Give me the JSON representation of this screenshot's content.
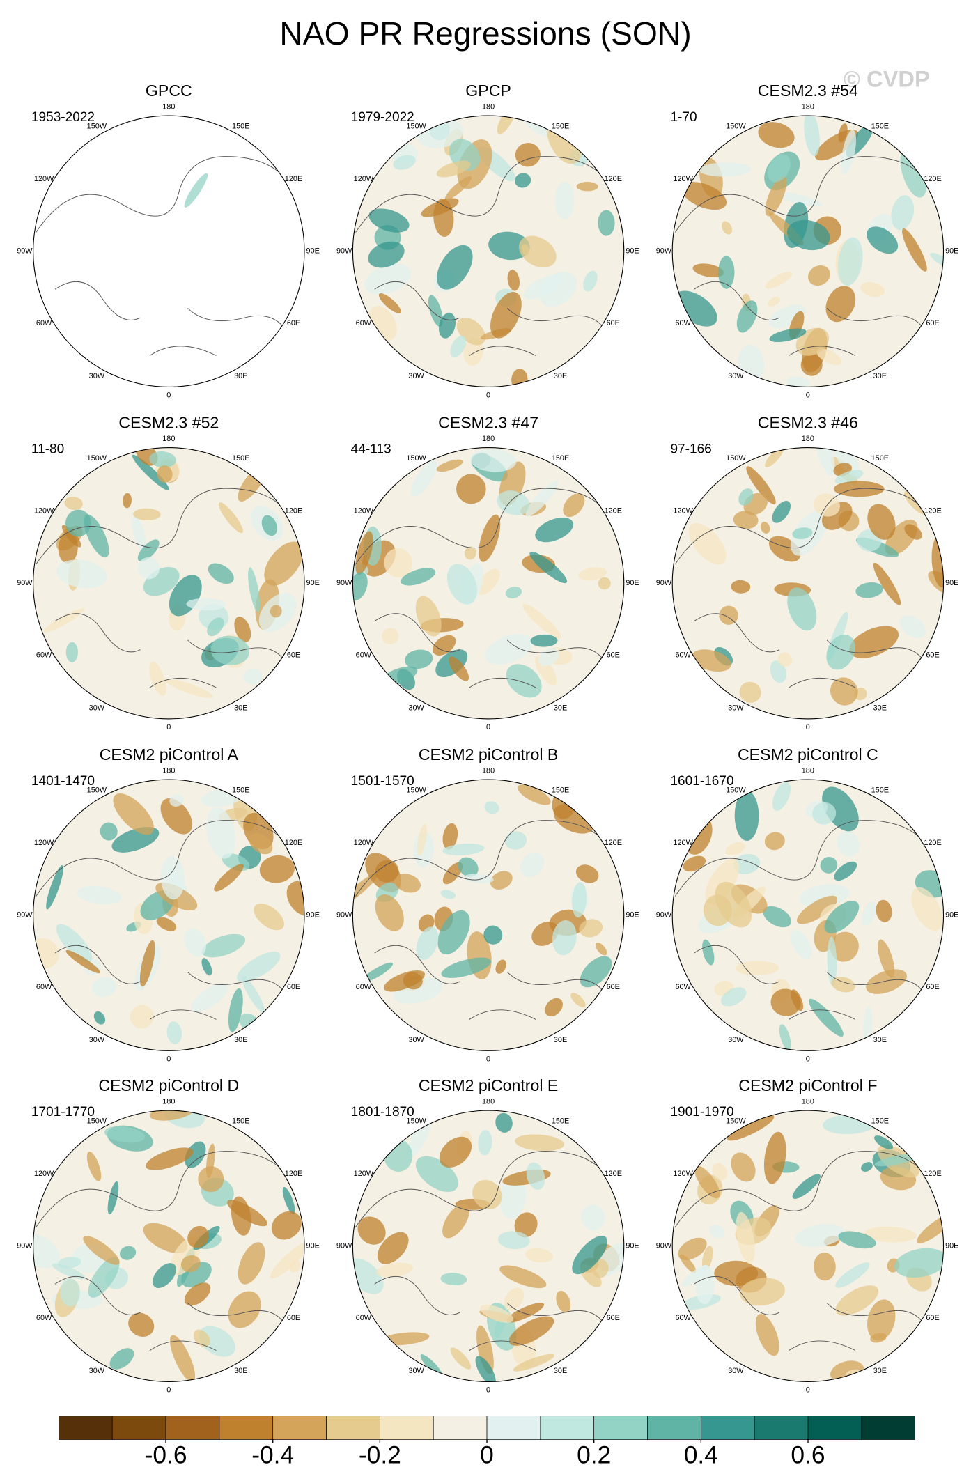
{
  "title": "NAO PR Regressions (SON)",
  "watermark": "© CVDP",
  "panels": [
    {
      "title": "GPCC",
      "period": "1953-2022"
    },
    {
      "title": "GPCP",
      "period": "1979-2022"
    },
    {
      "title": "CESM2.3 #54",
      "period": "1-70"
    },
    {
      "title": "CESM2.3 #52",
      "period": "11-80"
    },
    {
      "title": "CESM2.3 #47",
      "period": "44-113"
    },
    {
      "title": "CESM2.3 #46",
      "period": "97-166"
    },
    {
      "title": "CESM2 piControl A",
      "period": "1401-1470"
    },
    {
      "title": "CESM2 piControl B",
      "period": "1501-1570"
    },
    {
      "title": "CESM2 piControl C",
      "period": "1601-1670"
    },
    {
      "title": "CESM2 piControl D",
      "period": "1701-1770"
    },
    {
      "title": "CESM2 piControl E",
      "period": "1801-1870"
    },
    {
      "title": "CESM2 piControl F",
      "period": "1901-1970"
    }
  ],
  "lon_labels": [
    "180",
    "150E",
    "120E",
    "90E",
    "60E",
    "30E",
    "0",
    "30W",
    "60W",
    "90W",
    "120W",
    "150W"
  ],
  "colorbar": {
    "colors": [
      "#553009",
      "#7c4a0c",
      "#a0621c",
      "#bf812d",
      "#d3a45a",
      "#e6cb8e",
      "#f5e6c2",
      "#f5f0e4",
      "#e2f1ef",
      "#c0e7e0",
      "#93d3c6",
      "#5fb4a6",
      "#35978f",
      "#1a7a70",
      "#035e53",
      "#013d33"
    ],
    "clim": [
      -0.8,
      0.8
    ],
    "ticks": [
      -0.6,
      -0.4,
      -0.2,
      0,
      0.2,
      0.4,
      0.6
    ]
  }
}
